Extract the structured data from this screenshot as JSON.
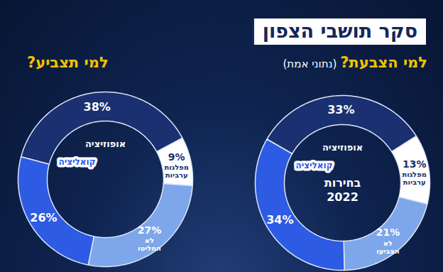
{
  "title": "סקר תושבי הצפון",
  "chart_data": [
    {
      "type": "pie",
      "title": "למי הצבעת?",
      "subtitle": "(נתוני אמת)",
      "annotation": "בחירות 2022",
      "categories": [
        "אופוזיציה",
        "מפלגות ערביות",
        "לא הצביעו",
        "קואליציה"
      ],
      "values": [
        33,
        13,
        21,
        34
      ],
      "value_labels": [
        "33%",
        "13%",
        "21%",
        "34%"
      ],
      "colors": [
        "#1a3070",
        "#ffffff",
        "#7ea6ea",
        "#2d5be3"
      ],
      "data_labels": true
    },
    {
      "type": "pie",
      "title": "למי תצביע?",
      "categories": [
        "אופוזיציה",
        "מפלגות ערביות",
        "לא החליטו",
        "קואליציה"
      ],
      "values": [
        38,
        9,
        27,
        26
      ],
      "value_labels": [
        "38%",
        "9%",
        "27%",
        "26%"
      ],
      "colors": [
        "#1a3070",
        "#ffffff",
        "#7ea6ea",
        "#2d5be3"
      ],
      "data_labels": true
    }
  ]
}
